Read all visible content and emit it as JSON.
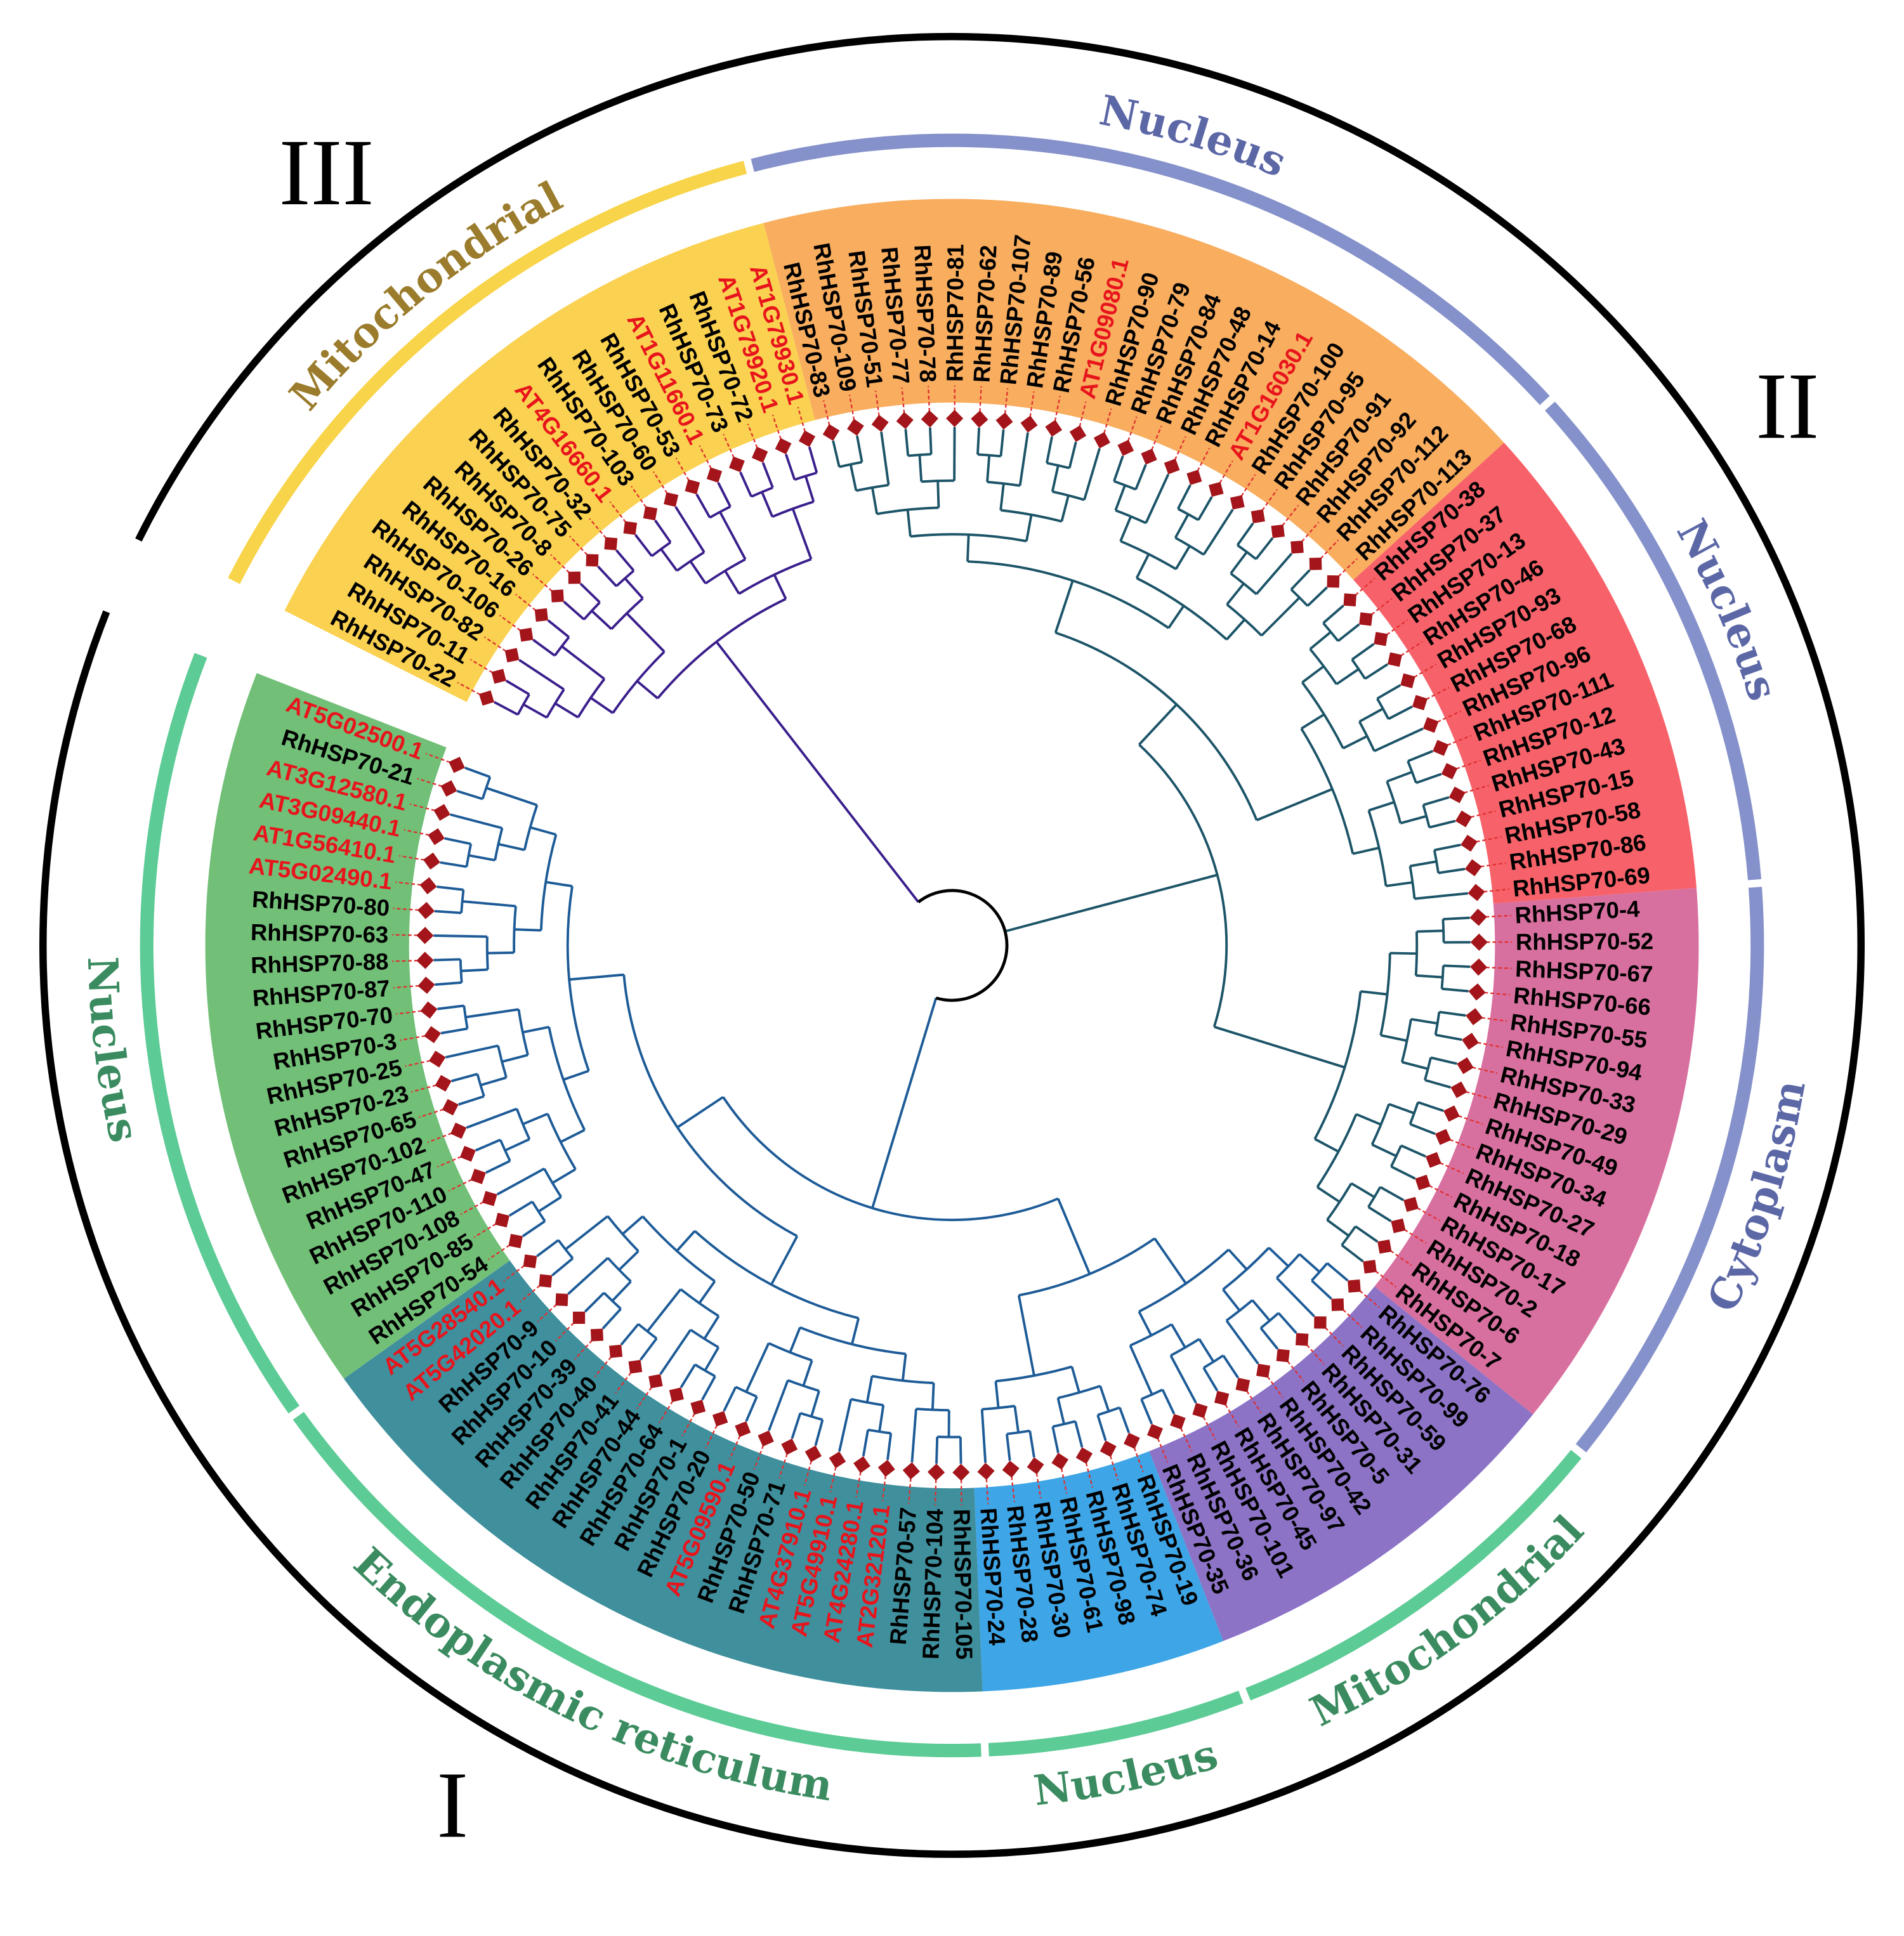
{
  "clades": [
    {
      "label": "III",
      "branch_color": "#3a1f8c",
      "groups": [
        {
          "name": "Mitochondrial",
          "sector_color": "#fad150",
          "arc_color": "#f8d44a",
          "label_color": "#9b7c2c",
          "leaves": [
            "RhHSP70-22",
            "RhHSP70-11",
            "RhHSP70-82",
            "RhHSP70-106",
            "RhHSP70-16",
            "RhHSP70-26",
            "RhHSP70-8",
            "RhHSP70-75",
            "RhHSP70-32",
            "AT4G16660.1",
            "RhHSP70-103",
            "RhHSP70-60",
            "RhHSP70-53",
            "AT1G11660.1",
            "RhHSP70-73",
            "RhHSP70-72",
            "AT1G79920.1",
            "AT1G79930.1"
          ]
        }
      ]
    },
    {
      "label": "II",
      "branch_color": "#1c5468",
      "groups": [
        {
          "name": "Nucleus",
          "sector_color": "#f8ad5f",
          "arc_color": "#8591ca",
          "label_color": "#5c67a6",
          "leaves": [
            "RhHSP70-83",
            "RhHSP70-109",
            "RhHSP70-51",
            "RhHSP70-77",
            "RhHSP70-78",
            "RhHSP70-81",
            "RhHSP70-62",
            "RhHSP70-107",
            "RhHSP70-89",
            "RhHSP70-56",
            "AT1G09080.1",
            "RhHSP70-90",
            "RhHSP70-79",
            "RhHSP70-84",
            "RhHSP70-48",
            "RhHSP70-14",
            "AT1G16030.1",
            "RhHSP70-100",
            "RhHSP70-95",
            "RhHSP70-91",
            "RhHSP70-92",
            "RhHSP70-112",
            "RhHSP70-113"
          ]
        },
        {
          "name": "Nucleus",
          "sector_color": "#f7626a",
          "arc_color": "#8591ca",
          "label_color": "#5c67a6",
          "leaves": [
            "RhHSP70-38",
            "RhHSP70-37",
            "RhHSP70-13",
            "RhHSP70-46",
            "RhHSP70-93",
            "RhHSP70-68",
            "RhHSP70-96",
            "RhHSP70-111",
            "RhHSP70-12",
            "RhHSP70-43",
            "RhHSP70-15",
            "RhHSP70-58",
            "RhHSP70-86",
            "RhHSP70-69"
          ]
        },
        {
          "name": "Cytoplasm",
          "sector_color": "#d8709f",
          "arc_color": "#8591ca",
          "label_color": "#5c67a6",
          "leaves": [
            "RhHSP70-4",
            "RhHSP70-52",
            "RhHSP70-67",
            "RhHSP70-66",
            "RhHSP70-55",
            "RhHSP70-94",
            "RhHSP70-33",
            "RhHSP70-29",
            "RhHSP70-49",
            "RhHSP70-34",
            "RhHSP70-27",
            "RhHSP70-18",
            "RhHSP70-17",
            "RhHSP70-2",
            "RhHSP70-6",
            "RhHSP70-7"
          ]
        }
      ]
    },
    {
      "label": "I",
      "branch_color": "#1d5b97",
      "groups": [
        {
          "name": "Mitochondrial",
          "sector_color": "#8c73c6",
          "arc_color": "#5ccb95",
          "label_color": "#3b8b60",
          "leaves": [
            "RhHSP70-76",
            "RhHSP70-99",
            "RhHSP70-59",
            "RhHSP70-31",
            "RhHSP70-5",
            "RhHSP70-42",
            "RhHSP70-97",
            "RhHSP70-45",
            "RhHSP70-101",
            "RhHSP70-36",
            "RhHSP70-35"
          ]
        },
        {
          "name": "Nucleus",
          "sector_color": "#3ea5e6",
          "arc_color": "#5ccb95",
          "label_color": "#3b8b60",
          "leaves": [
            "RhHSP70-19",
            "RhHSP70-74",
            "RhHSP70-98",
            "RhHSP70-61",
            "RhHSP70-30",
            "RhHSP70-28",
            "RhHSP70-24"
          ]
        },
        {
          "name": "Endoplasmic reticulum",
          "sector_color": "#3f8f9d",
          "arc_color": "#5ccb95",
          "label_color": "#3b8b60",
          "leaves": [
            "RhHSP70-105",
            "RhHSP70-104",
            "RhHSP70-57",
            "AT2G32120.1",
            "AT4G24280.1",
            "AT5G49910.1",
            "AT4G37910.1",
            "RhHSP70-71",
            "RhHSP70-50",
            "AT5G09590.1",
            "RhHSP70-20",
            "RhHSP70-1",
            "RhHSP70-64",
            "RhHSP70-44",
            "RhHSP70-41",
            "RhHSP70-40",
            "RhHSP70-39",
            "RhHSP70-10",
            "RhHSP70-9",
            "AT5G42020.1",
            "AT5G28540.1"
          ]
        },
        {
          "name": "Nucleus",
          "sector_color": "#72bf78",
          "arc_color": "#5ccb95",
          "label_color": "#3b8b60",
          "leaves": [
            "RhHSP70-54",
            "RhHSP70-85",
            "RhHSP70-108",
            "RhHSP70-110",
            "RhHSP70-47",
            "RhHSP70-102",
            "RhHSP70-65",
            "RhHSP70-23",
            "RhHSP70-25",
            "RhHSP70-3",
            "RhHSP70-70",
            "RhHSP70-87",
            "RhHSP70-88",
            "RhHSP70-63",
            "RhHSP70-80",
            "AT5G02490.1",
            "AT1G56410.1",
            "AT3G09440.1",
            "AT3G12580.1",
            "RhHSP70-21",
            "AT5G02500.1"
          ]
        }
      ]
    }
  ]
}
